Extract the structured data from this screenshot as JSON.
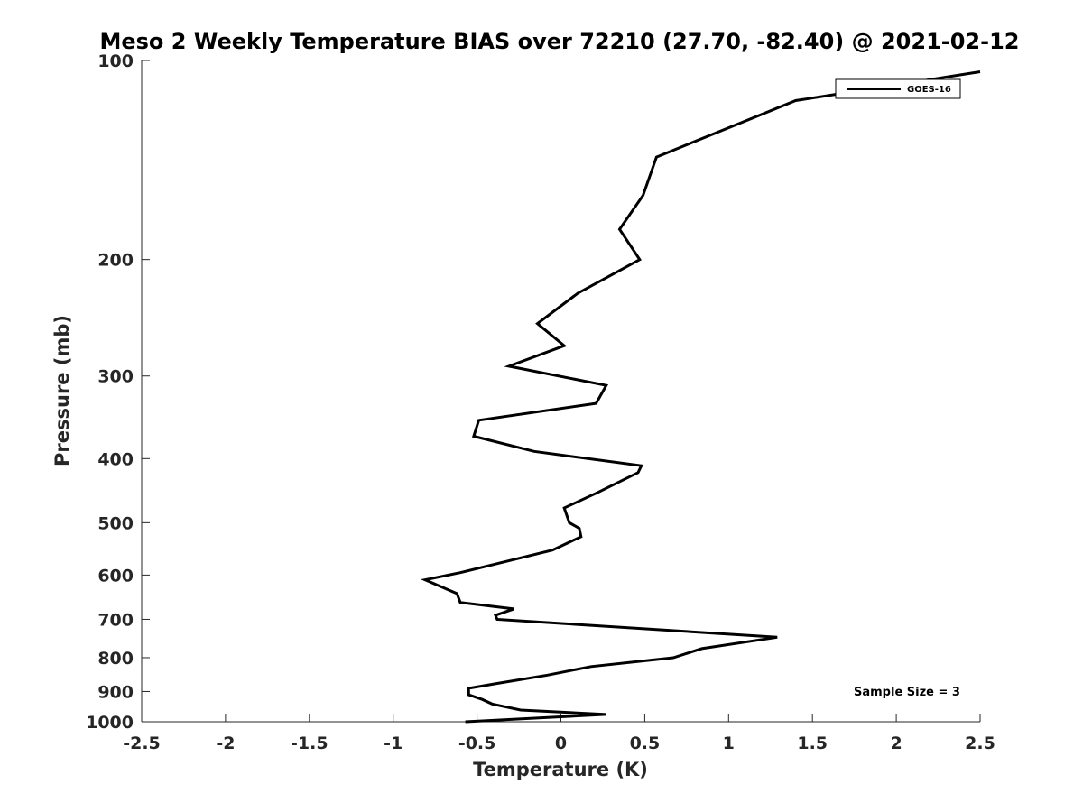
{
  "chart_data": {
    "type": "line",
    "title": "Meso 2 Weekly Temperature BIAS over 72210 (27.70, -82.40) @ 2021-02-12",
    "xlabel": "Temperature (K)",
    "ylabel": "Pressure (mb)",
    "xlim": [
      -2.5,
      2.5
    ],
    "ylim": [
      100,
      1000
    ],
    "y_scale": "log",
    "y_reversed": true,
    "grid": false,
    "x_ticks": [
      -2.5,
      -2,
      -1.5,
      -1,
      -0.5,
      0,
      0.5,
      1,
      1.5,
      2,
      2.5
    ],
    "x_tick_labels": [
      "-2.5",
      "-2",
      "-1.5",
      "-1",
      "-0.5",
      "0",
      "0.5",
      "1",
      "1.5",
      "2",
      "2.5"
    ],
    "y_ticks": [
      100,
      200,
      300,
      400,
      500,
      600,
      700,
      800,
      900,
      1000
    ],
    "y_tick_labels": [
      "100",
      "200",
      "300",
      "400",
      "500",
      "600",
      "700",
      "800",
      "900",
      "1000"
    ],
    "legend_position": "top-right",
    "series": [
      {
        "name": "GOES-16",
        "color": "#000000",
        "points": [
          [
            2.5,
            104
          ],
          [
            1.4,
            115
          ],
          [
            0.57,
            140
          ],
          [
            0.49,
            160
          ],
          [
            0.35,
            180
          ],
          [
            0.47,
            200
          ],
          [
            0.1,
            225
          ],
          [
            -0.14,
            250
          ],
          [
            0.02,
            270
          ],
          [
            -0.31,
            290
          ],
          [
            0.27,
            310
          ],
          [
            0.21,
            330
          ],
          [
            -0.49,
            350
          ],
          [
            -0.52,
            370
          ],
          [
            -0.16,
            390
          ],
          [
            0.48,
            410
          ],
          [
            0.46,
            420
          ],
          [
            0.22,
            450
          ],
          [
            0.02,
            475
          ],
          [
            0.05,
            500
          ],
          [
            0.11,
            510
          ],
          [
            0.12,
            525
          ],
          [
            -0.05,
            550
          ],
          [
            -0.36,
            575
          ],
          [
            -0.6,
            595
          ],
          [
            -0.81,
            610
          ],
          [
            -0.62,
            640
          ],
          [
            -0.6,
            660
          ],
          [
            -0.28,
            675
          ],
          [
            -0.39,
            690
          ],
          [
            -0.38,
            700
          ],
          [
            1.29,
            745
          ],
          [
            0.84,
            775
          ],
          [
            0.67,
            800
          ],
          [
            0.18,
            825
          ],
          [
            -0.08,
            850
          ],
          [
            -0.38,
            875
          ],
          [
            -0.55,
            890
          ],
          [
            -0.55,
            910
          ],
          [
            -0.47,
            925
          ],
          [
            -0.41,
            940
          ],
          [
            -0.24,
            960
          ],
          [
            0.27,
            975
          ],
          [
            -0.57,
            1000
          ]
        ]
      }
    ],
    "annotation": "Sample Size = 3"
  }
}
